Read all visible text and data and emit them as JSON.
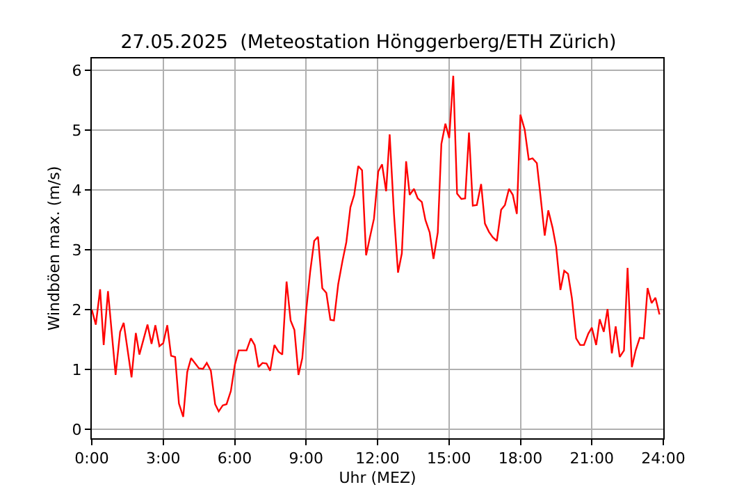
{
  "chart_data": {
    "type": "line",
    "title": "27.05.2025  (Meteostation Hönggerberg/ETH Zürich)",
    "xlabel": "Uhr (MEZ)",
    "ylabel": "Windböen max. (m/s)",
    "x": [
      0,
      0.17,
      0.35,
      0.5,
      0.68,
      1.0,
      1.19,
      1.34,
      1.67,
      1.85,
      2.0,
      2.34,
      2.51,
      2.67,
      2.84,
      3.0,
      3.17,
      3.33,
      3.5,
      3.66,
      3.84,
      4.01,
      4.17,
      4.5,
      4.67,
      4.83,
      5.0,
      5.18,
      5.33,
      5.5,
      5.66,
      5.84,
      6.01,
      6.17,
      6.5,
      6.68,
      6.84,
      7.0,
      7.17,
      7.34,
      7.49,
      7.67,
      7.84,
      8.0,
      8.18,
      8.35,
      8.51,
      8.68,
      8.84,
      9.01,
      9.17,
      9.34,
      9.5,
      9.68,
      9.85,
      10.02,
      10.17,
      10.35,
      10.53,
      10.69,
      10.86,
      11.02,
      11.19,
      11.35,
      11.52,
      11.68,
      11.85,
      12.03,
      12.19,
      12.36,
      12.51,
      12.69,
      12.86,
      13.02,
      13.2,
      13.35,
      13.53,
      13.69,
      13.86,
      14.01,
      14.19,
      14.35,
      14.53,
      14.68,
      14.85,
      15.01,
      15.18,
      15.34,
      15.52,
      15.68,
      15.84,
      16.0,
      16.17,
      16.35,
      16.51,
      16.68,
      16.84,
      17.01,
      17.19,
      17.35,
      17.52,
      17.68,
      17.85,
      18.0,
      18.18,
      18.35,
      18.51,
      18.69,
      18.84,
      19.02,
      19.17,
      19.35,
      19.5,
      19.68,
      19.84,
      20.0,
      20.16,
      20.34,
      20.51,
      20.67,
      20.85,
      21.0,
      21.18,
      21.33,
      21.5,
      21.66,
      21.84,
      22.0,
      22.17,
      22.35,
      22.5,
      22.68,
      22.84,
      23.01,
      23.18,
      23.34,
      23.51,
      23.67,
      23.84
    ],
    "series": [
      {
        "color": "#ff0000",
        "values": [
          2.0,
          1.75,
          2.34,
          1.41,
          2.31,
          0.91,
          1.63,
          1.78,
          0.87,
          1.61,
          1.25,
          1.75,
          1.43,
          1.74,
          1.39,
          1.44,
          1.74,
          1.23,
          1.21,
          0.43,
          0.21,
          0.96,
          1.19,
          1.02,
          1.01,
          1.11,
          0.98,
          0.42,
          0.3,
          0.4,
          0.42,
          0.64,
          1.08,
          1.32,
          1.32,
          1.52,
          1.41,
          1.04,
          1.11,
          1.1,
          0.98,
          1.41,
          1.3,
          1.25,
          2.47,
          1.82,
          1.66,
          0.91,
          1.19,
          2.01,
          2.63,
          3.15,
          3.22,
          2.36,
          2.28,
          1.83,
          1.82,
          2.43,
          2.82,
          3.13,
          3.71,
          3.92,
          4.4,
          4.33,
          2.91,
          3.21,
          3.52,
          4.31,
          4.43,
          3.98,
          4.93,
          3.6,
          2.62,
          2.94,
          4.48,
          3.92,
          4.02,
          3.86,
          3.8,
          3.5,
          3.29,
          2.85,
          3.29,
          4.77,
          5.11,
          4.87,
          5.91,
          3.94,
          3.85,
          3.86,
          4.96,
          3.74,
          3.75,
          4.1,
          3.44,
          3.3,
          3.21,
          3.15,
          3.67,
          3.75,
          4.02,
          3.92,
          3.6,
          5.26,
          5.01,
          4.51,
          4.53,
          4.45,
          3.91,
          3.24,
          3.66,
          3.37,
          3.05,
          2.33,
          2.65,
          2.6,
          2.2,
          1.52,
          1.41,
          1.41,
          1.6,
          1.7,
          1.41,
          1.84,
          1.63,
          2.01,
          1.27,
          1.72,
          1.21,
          1.32,
          2.7,
          1.04,
          1.32,
          1.53,
          1.52,
          2.36,
          2.11,
          2.2,
          1.92
        ]
      }
    ],
    "xlim": [
      0,
      24
    ],
    "ylim": [
      -0.15,
      6.2
    ],
    "xticks": [
      {
        "value": 0,
        "label": "0:00"
      },
      {
        "value": 3,
        "label": "3:00"
      },
      {
        "value": 6,
        "label": "6:00"
      },
      {
        "value": 9,
        "label": "9:00"
      },
      {
        "value": 12,
        "label": "12:00"
      },
      {
        "value": 15,
        "label": "15:00"
      },
      {
        "value": 18,
        "label": "18:00"
      },
      {
        "value": 21,
        "label": "21:00"
      },
      {
        "value": 24,
        "label": "24:00"
      }
    ],
    "yticks": [
      0,
      1,
      2,
      3,
      4,
      5,
      6
    ],
    "grid": true,
    "line_style": "solid",
    "marker": "none"
  }
}
